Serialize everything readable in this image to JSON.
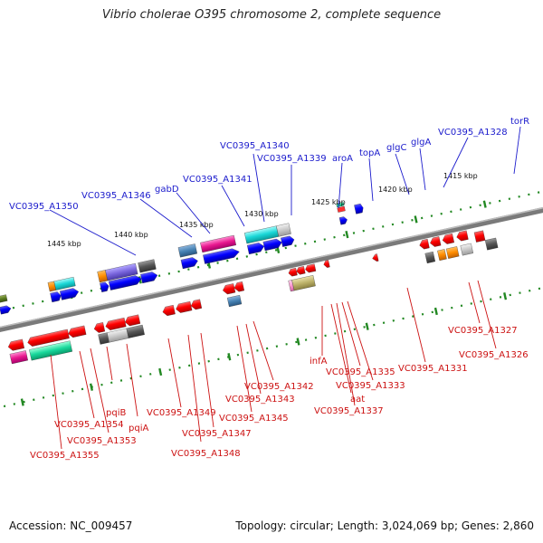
{
  "title": "Vibrio cholerae O395 chromosome 2, complete sequence",
  "footer": {
    "accession": "Accession: NC_009457",
    "summary": "Topology: circular; Length: 3,024,069 bp; Genes: 2,860"
  },
  "colors": {
    "forward_label": "#1a1acc",
    "reverse_label": "#cc1111",
    "backbone": "#777777",
    "tick": "#228822"
  },
  "scale_ticks": [
    "1445 kbp",
    "1440 kbp",
    "1435 kbp",
    "1430 kbp",
    "1425 kbp",
    "1420 kbp",
    "1415 kbp"
  ],
  "forward_labels": [
    "VC0395_A1350",
    "VC0395_A1346",
    "gabD",
    "VC0395_A1341",
    "VC0395_A1340",
    "VC0395_A1339",
    "aroA",
    "topA",
    "glgC",
    "glgA",
    "VC0395_A1328",
    "torR"
  ],
  "reverse_labels": [
    "infA",
    "aat",
    "VC0395_A1337",
    "VC0395_A1335",
    "VC0395_A1333",
    "VC0395_A1331",
    "VC0395_A1327",
    "VC0395_A1326",
    "VC0395_A1342",
    "VC0395_A1343",
    "VC0395_A1345",
    "VC0395_A1347",
    "VC0395_A1348",
    "VC0395_A1349",
    "VC0395_A1354",
    "VC0395_A1353",
    "VC0395_A1355",
    "pqiB",
    "pqiA"
  ]
}
